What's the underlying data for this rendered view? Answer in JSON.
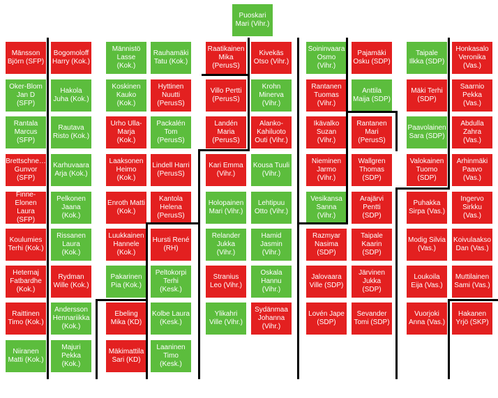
{
  "colors": {
    "yes": "#e32020",
    "no": "#5cbd3d",
    "divider": "#000000"
  },
  "chair": {
    "name": "Puoskari Mari (Vihr.)",
    "vote": "no"
  },
  "columns": [
    [
      {
        "name": "Mänsson Björn (SFP)",
        "vote": "yes"
      },
      {
        "name": "Oker-Blom Jan D (SFP)",
        "vote": "no"
      },
      {
        "name": "Rantala Marcus (SFP)",
        "vote": "no"
      },
      {
        "name": "Brettschne… Gunvor (SFP)",
        "vote": "yes"
      },
      {
        "name": "Finne-Elonen Laura (SFP)",
        "vote": "yes"
      },
      {
        "name": "Koulumies Terhi (Kok.)",
        "vote": "yes"
      },
      {
        "name": "Heternaj Fatbardhe (Kok.)",
        "vote": "yes"
      },
      {
        "name": "Raittinen Timo (Kok.)",
        "vote": "yes"
      },
      {
        "name": "Niiranen Matti (Kok.)",
        "vote": "no"
      }
    ],
    [
      {
        "name": "Bogomoloff Harry (Kok.)",
        "vote": "yes"
      },
      {
        "name": "Hakola Juha (Kok.)",
        "vote": "no"
      },
      {
        "name": "Rautava Risto (Kok.)",
        "vote": "no"
      },
      {
        "name": "Karhuvaara Arja (Kok.)",
        "vote": "no"
      },
      {
        "name": "Pelkonen Jaana (Kok.)",
        "vote": "no"
      },
      {
        "name": "Rissanen Laura (Kok.)",
        "vote": "no"
      },
      {
        "name": "Rydman Wille (Kok.)",
        "vote": "yes"
      },
      {
        "name": "Andersson Hennariikka (Kok.)",
        "vote": "no"
      },
      {
        "name": "Majuri Pekka (Kok.)",
        "vote": "no"
      }
    ],
    [
      {
        "name": "Männistö Lasse (Kok.)",
        "vote": "no"
      },
      {
        "name": "Koskinen Kauko (Kok.)",
        "vote": "no"
      },
      {
        "name": "Urho Ulla-Marja (Kok.)",
        "vote": "yes"
      },
      {
        "name": "Laaksonen Heimo (Kok.)",
        "vote": "yes"
      },
      {
        "name": "Enroth Matti (Kok.)",
        "vote": "yes"
      },
      {
        "name": "Luukkainen Hannele (Kok.)",
        "vote": "yes"
      },
      {
        "name": "Pakarinen Pia (Kok.)",
        "vote": "no"
      },
      {
        "name": "Ebeling Mika (KD)",
        "vote": "yes"
      },
      {
        "name": "Mäkimattila Sari (KD)",
        "vote": "yes"
      }
    ],
    [
      {
        "name": "Rauhamäki Tatu (Kok.)",
        "vote": "no"
      },
      {
        "name": "Hyttinen Nuutti (PerusS)",
        "vote": "yes"
      },
      {
        "name": "Packalén Tom (PerusS)",
        "vote": "no"
      },
      {
        "name": "Lindell Harri (PerusS)",
        "vote": "yes"
      },
      {
        "name": "Kantola Helena (PerusS)",
        "vote": "yes"
      },
      {
        "name": "Hursti René (RH)",
        "vote": "yes"
      },
      {
        "name": "Peltokorpi Terhi (Kesk.)",
        "vote": "no"
      },
      {
        "name": "Kolbe Laura (Kesk.)",
        "vote": "no"
      },
      {
        "name": "Laaninen Timo (Kesk.)",
        "vote": "no"
      }
    ],
    [
      {
        "name": "Raatikainen Mika (PerusS)",
        "vote": "yes"
      },
      {
        "name": "Villo Pertti (PerusS)",
        "vote": "yes"
      },
      {
        "name": "Landén Maria (PerusS)",
        "vote": "yes"
      },
      {
        "name": "Kari Emma (Vihr.)",
        "vote": "yes"
      },
      {
        "name": "Holopainen Mari (Vihr.)",
        "vote": "no"
      },
      {
        "name": "Relander Jukka (Vihr.)",
        "vote": "no"
      },
      {
        "name": "Stranius Leo (Vihr.)",
        "vote": "yes"
      },
      {
        "name": "Ylikahri Ville (Vihr.)",
        "vote": "no"
      }
    ],
    [
      {
        "name": "Kivekäs Otso (Vihr.)",
        "vote": "yes"
      },
      {
        "name": "Krohn Minerva (Vihr.)",
        "vote": "no"
      },
      {
        "name": "Alanko-Kahiluoto Outi (Vihr.)",
        "vote": "yes"
      },
      {
        "name": "Kousa Tuuli (Vihr.)",
        "vote": "no"
      },
      {
        "name": "Lehtipuu Otto (Vihr.)",
        "vote": "no"
      },
      {
        "name": "Hamid Jasmin (Vihr.)",
        "vote": "no"
      },
      {
        "name": "Oskala Hannu (Vihr.)",
        "vote": "no"
      },
      {
        "name": "Sydänmaa Johanna (Vihr.)",
        "vote": "yes"
      }
    ],
    [
      {
        "name": "Soininvaara Osmo (Vihr.)",
        "vote": "no"
      },
      {
        "name": "Rantanen Tuomas (Vihr.)",
        "vote": "yes"
      },
      {
        "name": "Ikävalko Suzan (Vihr.)",
        "vote": "yes"
      },
      {
        "name": "Nieminen Jarmo (Vihr.)",
        "vote": "yes"
      },
      {
        "name": "Vesikansa Sanna (Vihr.)",
        "vote": "no"
      },
      {
        "name": "Razmyar Nasima (SDP)",
        "vote": "yes"
      },
      {
        "name": "Jalovaara Ville (SDP)",
        "vote": "yes"
      },
      {
        "name": "Lovén Jape (SDP)",
        "vote": "yes"
      }
    ],
    [
      {
        "name": "Pajamäki Osku (SDP)",
        "vote": "yes"
      },
      {
        "name": "Anttila Maija (SDP)",
        "vote": "no"
      },
      {
        "name": "Rantanen Mari (PerusS)",
        "vote": "yes"
      },
      {
        "name": "Wallgren Thomas (SDP)",
        "vote": "yes"
      },
      {
        "name": "Arajärvi Pentti (SDP)",
        "vote": "yes"
      },
      {
        "name": "Taipale Kaarin (SDP)",
        "vote": "yes"
      },
      {
        "name": "Järvinen Jukka (SDP)",
        "vote": "yes"
      },
      {
        "name": "Sevander Tomi (SDP)",
        "vote": "yes"
      }
    ],
    [
      {
        "name": "Taipale Ilkka (SDP)",
        "vote": "no"
      },
      {
        "name": "Mäki Terhi (SDP)",
        "vote": "yes"
      },
      {
        "name": "Paavolainen Sara (SDP)",
        "vote": "no"
      },
      {
        "name": "Valokainen Tuomo (SDP)",
        "vote": "yes"
      },
      {
        "name": "Puhakka Sirpa (Vas.)",
        "vote": "yes"
      },
      {
        "name": "Modig Silvia (Vas.)",
        "vote": "yes"
      },
      {
        "name": "Loukoila Eija (Vas.)",
        "vote": "yes"
      },
      {
        "name": "Vuorjoki Anna (Vas.)",
        "vote": "yes"
      }
    ],
    [
      {
        "name": "Honkasalo Veronika (Vas.)",
        "vote": "yes"
      },
      {
        "name": "Saarnio Pekka (Vas.)",
        "vote": "yes"
      },
      {
        "name": "Abdulla Zahra (Vas.)",
        "vote": "yes"
      },
      {
        "name": "Arhinmäki Paavo (Vas.)",
        "vote": "yes"
      },
      {
        "name": "Ingervo Sirkku (Vas.)",
        "vote": "yes"
      },
      {
        "name": "Koivulaakso Dan (Vas.)",
        "vote": "yes"
      },
      {
        "name": "Muttilainen Sami (Vas.)",
        "vote": "yes"
      },
      {
        "name": "Hakanen Yrjö (SKP)",
        "vote": "yes"
      }
    ]
  ]
}
